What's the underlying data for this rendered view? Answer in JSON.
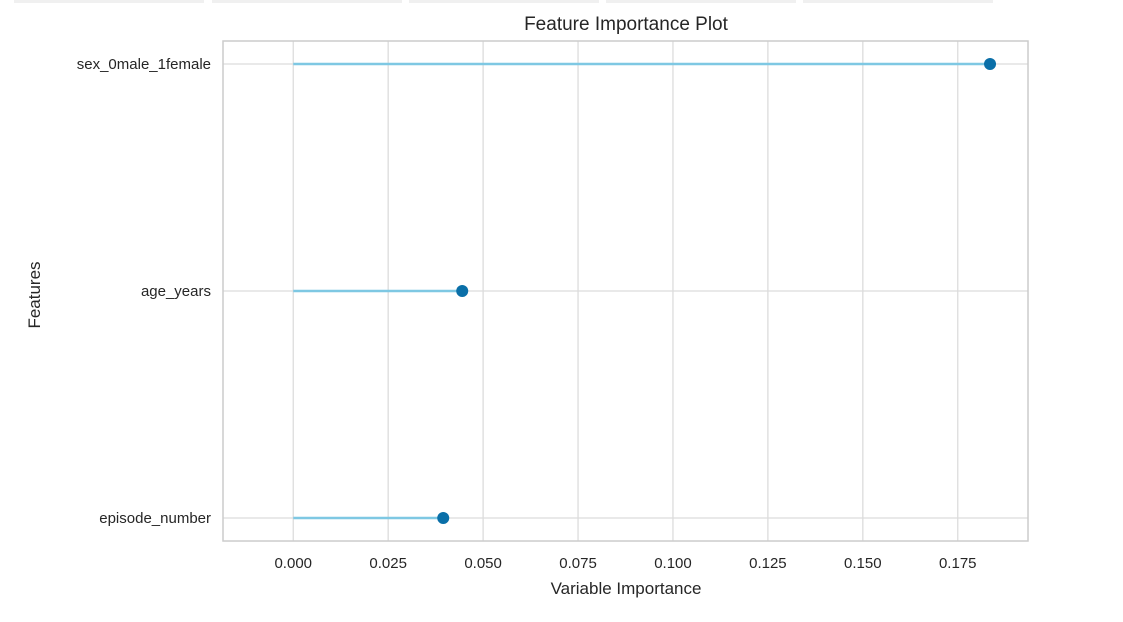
{
  "chart_data": {
    "type": "lollipop",
    "title": "Feature Importance Plot",
    "xlabel": "Variable Importance",
    "ylabel": "Features",
    "categories": [
      "sex_0male_1female",
      "age_years",
      "episode_number"
    ],
    "values": [
      0.1835,
      0.0445,
      0.0395
    ],
    "xlim": [
      -0.0185,
      0.1935
    ],
    "xticks": [
      0.0,
      0.025,
      0.05,
      0.075,
      0.1,
      0.125,
      0.15,
      0.175
    ],
    "xtick_labels": [
      "0.000",
      "0.025",
      "0.050",
      "0.075",
      "0.100",
      "0.125",
      "0.150",
      "0.175"
    ],
    "grid": true,
    "colors": {
      "stem": "#7ec8e3",
      "marker": "#0a6fa8",
      "grid": "#dcdcdc",
      "frame": "#cccccc",
      "text": "#262626"
    }
  }
}
